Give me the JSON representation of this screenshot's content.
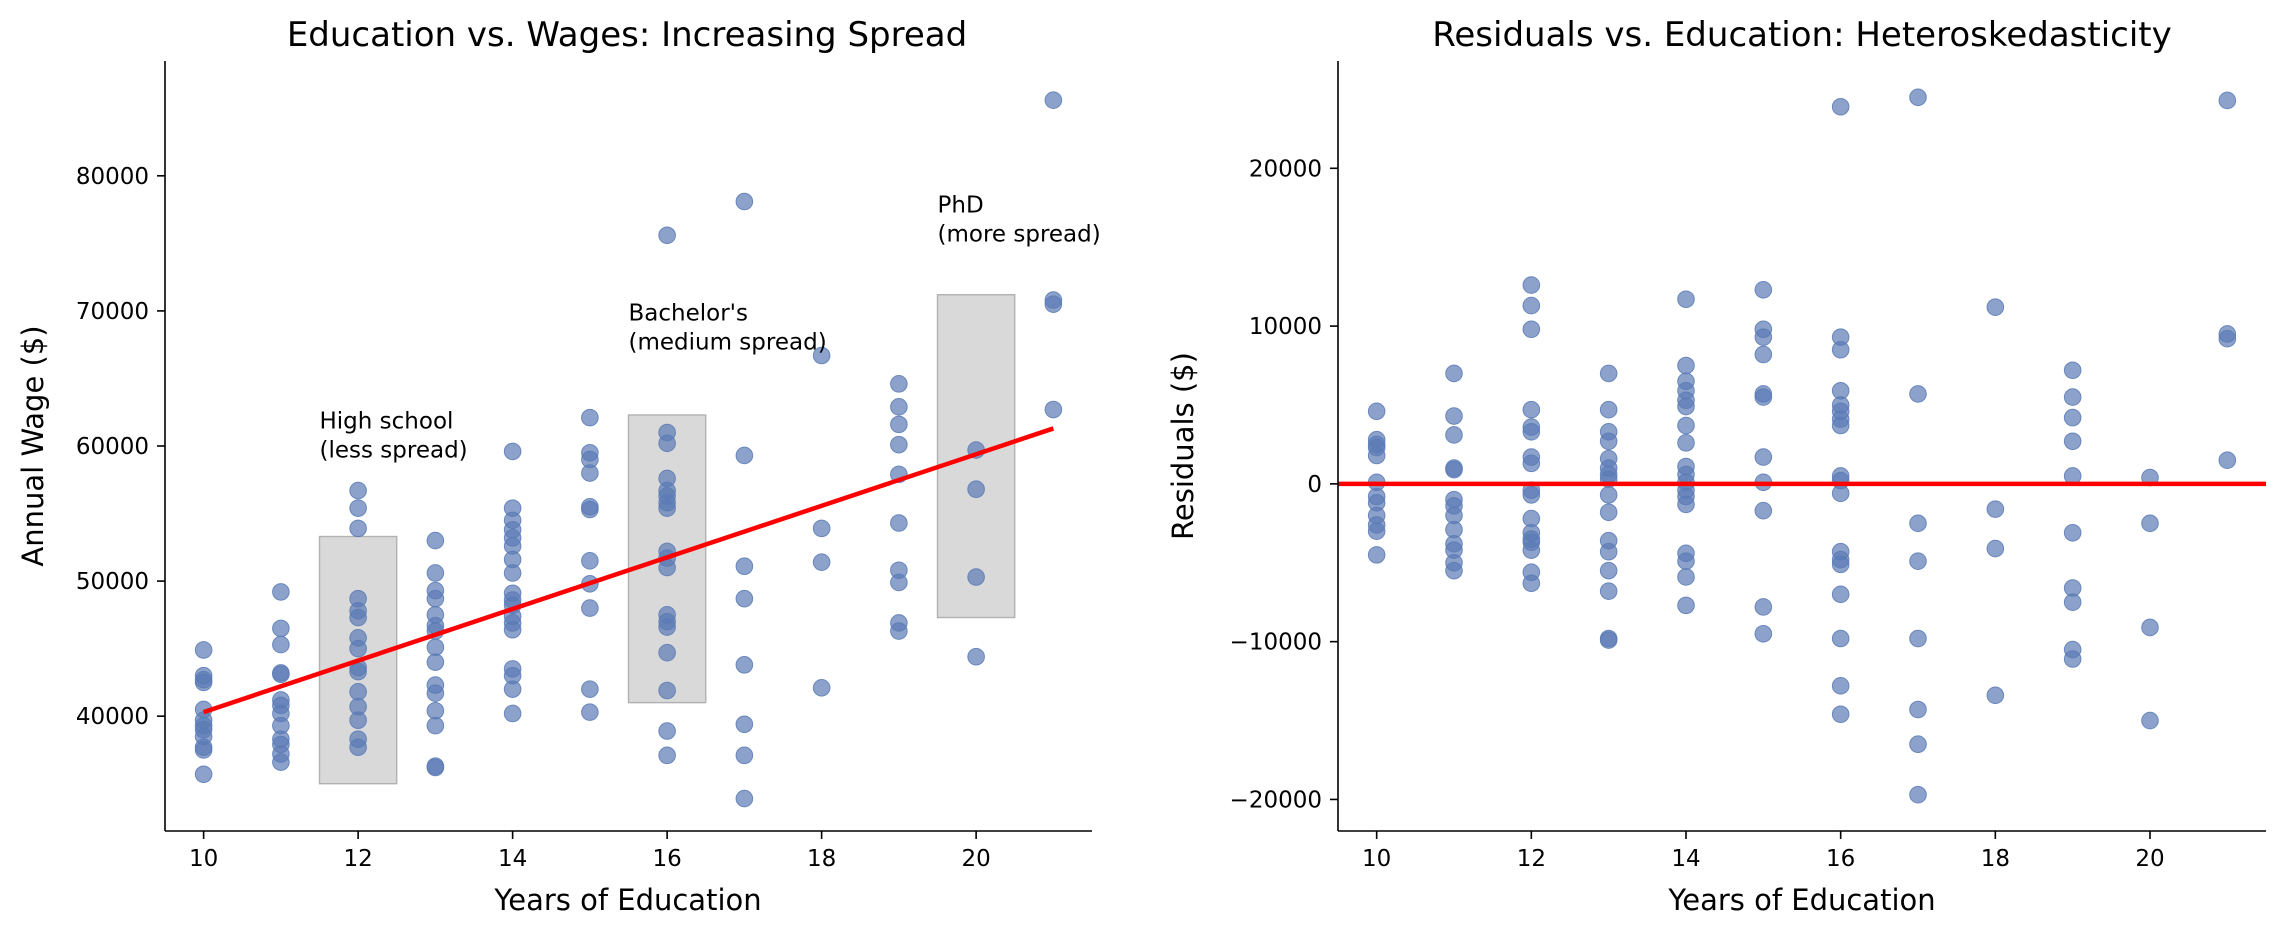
{
  "chart_data": [
    {
      "type": "scatter",
      "title": "Education vs. Wages: Increasing Spread",
      "xlabel": "Years of Education",
      "ylabel": "Annual Wage ($)",
      "xlim": [
        9.5,
        21.5
      ],
      "ylim": [
        31500,
        88500
      ],
      "xticks": [
        "10",
        "12",
        "14",
        "16",
        "18",
        "20"
      ],
      "yticks": [
        "40000",
        "50000",
        "60000",
        "70000",
        "80000"
      ],
      "grid": false,
      "point_color": "#5b7bb5",
      "trend_line": {
        "color": "#ff0000",
        "x": [
          10,
          21
        ],
        "y": [
          40300,
          61300
        ]
      },
      "shaded_regions": [
        {
          "x0": 11.5,
          "x1": 12.5,
          "y0": 35000,
          "y1": 53300,
          "color": "#bfbfbf"
        },
        {
          "x0": 15.5,
          "x1": 16.5,
          "y0": 41000,
          "y1": 62300,
          "color": "#bfbfbf"
        },
        {
          "x0": 19.5,
          "x1": 20.5,
          "y0": 47300,
          "y1": 71200,
          "color": "#bfbfbf"
        }
      ],
      "annotations": [
        {
          "x": 11.5,
          "y": 61300,
          "lines": [
            "High school",
            "(less spread)"
          ]
        },
        {
          "x": 15.5,
          "y": 69300,
          "lines": [
            "Bachelor's",
            "(medium spread)"
          ]
        },
        {
          "x": 19.5,
          "y": 77300,
          "lines": [
            "PhD",
            "(more spread)"
          ]
        }
      ],
      "points": [
        [
          10,
          44900
        ],
        [
          10,
          43000
        ],
        [
          10,
          42500
        ],
        [
          10,
          42700
        ],
        [
          10,
          40500
        ],
        [
          10,
          39700
        ],
        [
          10,
          39300
        ],
        [
          10,
          39000
        ],
        [
          10,
          38500
        ],
        [
          10,
          37700
        ],
        [
          10,
          37500
        ],
        [
          10,
          35700
        ],
        [
          11,
          49200
        ],
        [
          11,
          46500
        ],
        [
          11,
          45300
        ],
        [
          11,
          43200
        ],
        [
          11,
          43100
        ],
        [
          11,
          41200
        ],
        [
          11,
          40800
        ],
        [
          11,
          40200
        ],
        [
          11,
          39300
        ],
        [
          11,
          38300
        ],
        [
          11,
          37900
        ],
        [
          11,
          37200
        ],
        [
          11,
          36600
        ],
        [
          12,
          56700
        ],
        [
          12,
          55400
        ],
        [
          12,
          53900
        ],
        [
          12,
          48700
        ],
        [
          12,
          47800
        ],
        [
          12,
          47300
        ],
        [
          12,
          45800
        ],
        [
          12,
          45000
        ],
        [
          12,
          43600
        ],
        [
          12,
          43300
        ],
        [
          12,
          41800
        ],
        [
          12,
          40700
        ],
        [
          12,
          39700
        ],
        [
          12,
          38300
        ],
        [
          12,
          37700
        ],
        [
          13,
          53000
        ],
        [
          13,
          50600
        ],
        [
          13,
          49300
        ],
        [
          13,
          48700
        ],
        [
          13,
          47500
        ],
        [
          13,
          46700
        ],
        [
          13,
          46300
        ],
        [
          13,
          45100
        ],
        [
          13,
          44000
        ],
        [
          13,
          42300
        ],
        [
          13,
          41700
        ],
        [
          13,
          40400
        ],
        [
          13,
          39300
        ],
        [
          13,
          36300
        ],
        [
          13,
          36200
        ],
        [
          14,
          59600
        ],
        [
          14,
          55400
        ],
        [
          14,
          54500
        ],
        [
          14,
          53800
        ],
        [
          14,
          53200
        ],
        [
          14,
          52600
        ],
        [
          14,
          51600
        ],
        [
          14,
          50600
        ],
        [
          14,
          49100
        ],
        [
          14,
          48600
        ],
        [
          14,
          48200
        ],
        [
          14,
          47400
        ],
        [
          14,
          46900
        ],
        [
          14,
          46400
        ],
        [
          14,
          43500
        ],
        [
          14,
          43000
        ],
        [
          14,
          42000
        ],
        [
          14,
          40200
        ],
        [
          15,
          62100
        ],
        [
          15,
          59500
        ],
        [
          15,
          59000
        ],
        [
          15,
          58000
        ],
        [
          15,
          55500
        ],
        [
          15,
          55300
        ],
        [
          15,
          51500
        ],
        [
          15,
          49800
        ],
        [
          15,
          48000
        ],
        [
          15,
          42000
        ],
        [
          15,
          40300
        ],
        [
          16,
          75600
        ],
        [
          16,
          61000
        ],
        [
          16,
          60200
        ],
        [
          16,
          57600
        ],
        [
          16,
          56700
        ],
        [
          16,
          56300
        ],
        [
          16,
          55800
        ],
        [
          16,
          55400
        ],
        [
          16,
          52200
        ],
        [
          16,
          51700
        ],
        [
          16,
          51000
        ],
        [
          16,
          47500
        ],
        [
          16,
          47000
        ],
        [
          16,
          46600
        ],
        [
          16,
          44700
        ],
        [
          16,
          41900
        ],
        [
          16,
          38900
        ],
        [
          16,
          37100
        ],
        [
          17,
          78100
        ],
        [
          17,
          59300
        ],
        [
          17,
          51100
        ],
        [
          17,
          48700
        ],
        [
          17,
          43800
        ],
        [
          17,
          39400
        ],
        [
          17,
          37100
        ],
        [
          17,
          33900
        ],
        [
          18,
          66700
        ],
        [
          18,
          53900
        ],
        [
          18,
          51400
        ],
        [
          18,
          42100
        ],
        [
          19,
          64600
        ],
        [
          19,
          62900
        ],
        [
          19,
          61600
        ],
        [
          19,
          60100
        ],
        [
          19,
          57900
        ],
        [
          19,
          54300
        ],
        [
          19,
          50800
        ],
        [
          19,
          49900
        ],
        [
          19,
          46900
        ],
        [
          19,
          46300
        ],
        [
          20,
          59700
        ],
        [
          20,
          56800
        ],
        [
          20,
          50300
        ],
        [
          20,
          44400
        ],
        [
          21,
          85600
        ],
        [
          21,
          70800
        ],
        [
          21,
          70500
        ],
        [
          21,
          62700
        ]
      ]
    },
    {
      "type": "scatter",
      "title": "Residuals vs. Education: Heteroskedasticity",
      "xlabel": "Years of Education",
      "ylabel": "Residuals ($)",
      "xlim": [
        9.5,
        21.5
      ],
      "ylim": [
        -22000,
        26800
      ],
      "xticks": [
        "10",
        "12",
        "14",
        "16",
        "18",
        "20"
      ],
      "yticks": [
        "−20000",
        "−10000",
        "0",
        "10000",
        "20000"
      ],
      "grid": false,
      "point_color": "#5b7bb5",
      "zero_line": {
        "color": "#ff0000",
        "y": 0
      },
      "points": [
        [
          10,
          4600
        ],
        [
          10,
          2800
        ],
        [
          10,
          2500
        ],
        [
          10,
          2300
        ],
        [
          10,
          1800
        ],
        [
          10,
          100
        ],
        [
          10,
          -800
        ],
        [
          10,
          -1200
        ],
        [
          10,
          -2000
        ],
        [
          10,
          -2600
        ],
        [
          10,
          -3000
        ],
        [
          10,
          -4500
        ],
        [
          11,
          7000
        ],
        [
          11,
          4300
        ],
        [
          11,
          3100
        ],
        [
          11,
          1000
        ],
        [
          11,
          900
        ],
        [
          11,
          -1000
        ],
        [
          11,
          -1400
        ],
        [
          11,
          -2000
        ],
        [
          11,
          -2900
        ],
        [
          11,
          -3800
        ],
        [
          11,
          -4200
        ],
        [
          11,
          -5000
        ],
        [
          11,
          -5500
        ],
        [
          12,
          12600
        ],
        [
          12,
          11300
        ],
        [
          12,
          9800
        ],
        [
          12,
          4700
        ],
        [
          12,
          3600
        ],
        [
          12,
          3300
        ],
        [
          12,
          1700
        ],
        [
          12,
          1300
        ],
        [
          12,
          -400
        ],
        [
          12,
          -700
        ],
        [
          12,
          -2200
        ],
        [
          12,
          -3100
        ],
        [
          12,
          -3500
        ],
        [
          12,
          -3700
        ],
        [
          12,
          -4200
        ],
        [
          12,
          -5600
        ],
        [
          12,
          -6300
        ],
        [
          13,
          7000
        ],
        [
          13,
          4700
        ],
        [
          13,
          3300
        ],
        [
          13,
          2700
        ],
        [
          13,
          1600
        ],
        [
          13,
          1000
        ],
        [
          13,
          600
        ],
        [
          13,
          300
        ],
        [
          13,
          -700
        ],
        [
          13,
          -1800
        ],
        [
          13,
          -3600
        ],
        [
          13,
          -4300
        ],
        [
          13,
          -5500
        ],
        [
          13,
          -6800
        ],
        [
          13,
          -9800
        ],
        [
          13,
          -9900
        ],
        [
          14,
          11700
        ],
        [
          14,
          7500
        ],
        [
          14,
          6500
        ],
        [
          14,
          5900
        ],
        [
          14,
          5300
        ],
        [
          14,
          4900
        ],
        [
          14,
          3700
        ],
        [
          14,
          2600
        ],
        [
          14,
          1100
        ],
        [
          14,
          600
        ],
        [
          14,
          100
        ],
        [
          14,
          -400
        ],
        [
          14,
          -800
        ],
        [
          14,
          -1300
        ],
        [
          14,
          -4400
        ],
        [
          14,
          -4900
        ],
        [
          14,
          -5900
        ],
        [
          14,
          -7700
        ],
        [
          15,
          12300
        ],
        [
          15,
          9800
        ],
        [
          15,
          9300
        ],
        [
          15,
          8200
        ],
        [
          15,
          5700
        ],
        [
          15,
          5500
        ],
        [
          15,
          1700
        ],
        [
          15,
          100
        ],
        [
          15,
          -1700
        ],
        [
          15,
          -7800
        ],
        [
          15,
          -9500
        ],
        [
          16,
          23900
        ],
        [
          16,
          9300
        ],
        [
          16,
          8500
        ],
        [
          16,
          5900
        ],
        [
          16,
          5000
        ],
        [
          16,
          4600
        ],
        [
          16,
          4100
        ],
        [
          16,
          3700
        ],
        [
          16,
          500
        ],
        [
          16,
          200
        ],
        [
          16,
          -600
        ],
        [
          16,
          -4300
        ],
        [
          16,
          -4800
        ],
        [
          16,
          -5100
        ],
        [
          16,
          -7000
        ],
        [
          16,
          -9800
        ],
        [
          16,
          -12800
        ],
        [
          16,
          -14600
        ],
        [
          17,
          24500
        ],
        [
          17,
          5700
        ],
        [
          17,
          -2500
        ],
        [
          17,
          -4900
        ],
        [
          17,
          -9800
        ],
        [
          17,
          -14300
        ],
        [
          17,
          -16500
        ],
        [
          17,
          -19700
        ],
        [
          18,
          11200
        ],
        [
          18,
          -1600
        ],
        [
          18,
          -4100
        ],
        [
          18,
          -13400
        ],
        [
          19,
          7200
        ],
        [
          19,
          5500
        ],
        [
          19,
          4200
        ],
        [
          19,
          2700
        ],
        [
          19,
          500
        ],
        [
          19,
          -3100
        ],
        [
          19,
          -6600
        ],
        [
          19,
          -7500
        ],
        [
          19,
          -10500
        ],
        [
          19,
          -11100
        ],
        [
          20,
          400
        ],
        [
          20,
          -2500
        ],
        [
          20,
          -9100
        ],
        [
          20,
          -15000
        ],
        [
          21,
          24300
        ],
        [
          21,
          9500
        ],
        [
          21,
          9200
        ],
        [
          21,
          1500
        ]
      ]
    }
  ]
}
